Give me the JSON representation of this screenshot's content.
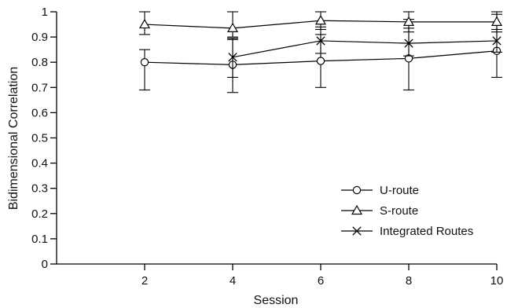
{
  "chart_data": {
    "type": "line",
    "title": "",
    "xlabel": "Session",
    "ylabel": "Bidimensional Correlation",
    "xlim": [
      0,
      10
    ],
    "ylim": [
      0,
      1
    ],
    "x_ticks": [
      2,
      4,
      6,
      8,
      10
    ],
    "y_ticks": [
      0,
      0.1,
      0.2,
      0.3,
      0.4,
      0.5,
      0.6,
      0.7,
      0.8,
      0.9,
      1
    ],
    "y_tick_labels": [
      "0",
      "0.1",
      "0.2",
      "0.3",
      "0.4",
      "0.5",
      "0.6",
      "0.7",
      "0.8",
      "0.9",
      "1"
    ],
    "grid": false,
    "legend_position": "bottom-right",
    "color": "#000000",
    "series": [
      {
        "name": "U-route",
        "marker": "circle",
        "x": [
          2,
          4,
          6,
          8,
          10
        ],
        "y": [
          0.8,
          0.79,
          0.805,
          0.815,
          0.845
        ],
        "err_low": [
          0.11,
          0.11,
          0.105,
          0.125,
          0.105
        ],
        "err_high": [
          0.05,
          0.1,
          0.105,
          0.155,
          0.145
        ]
      },
      {
        "name": "S-route",
        "marker": "triangle",
        "x": [
          2,
          4,
          6,
          8,
          10
        ],
        "y": [
          0.95,
          0.935,
          0.965,
          0.96,
          0.96
        ],
        "err_low": [
          0.04,
          0.035,
          0.035,
          0.04,
          0.04
        ],
        "err_high": [
          0.05,
          0.065,
          0.035,
          0.04,
          0.04
        ]
      },
      {
        "name": "Integrated Routes",
        "marker": "x",
        "x": [
          4,
          6,
          8,
          10
        ],
        "y": [
          0.82,
          0.885,
          0.875,
          0.885
        ],
        "err_low": [
          0.08,
          0.05,
          0.05,
          0.045
        ],
        "err_high": [
          0.075,
          0.055,
          0.06,
          0.045
        ]
      }
    ]
  }
}
